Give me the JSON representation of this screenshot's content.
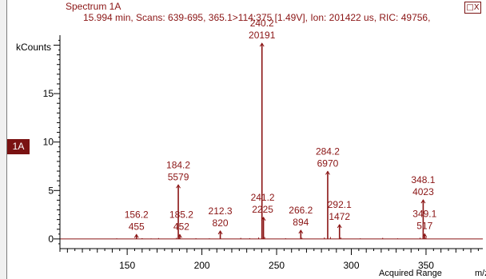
{
  "header": {
    "title": "Spectrum 1A",
    "info": "15.994 min, Scans: 639-695, 365.1>114:375 [1.49V], Ion: 201422 us, RIC: 49756,"
  },
  "tab_label": "1A",
  "footer": {
    "acquired_range": "Acquired Range"
  },
  "colors": {
    "peaks": "#8a1414",
    "axis": "#000000",
    "tab": "#7a1212"
  },
  "chart_data": {
    "type": "bar",
    "title": "Spectrum 1A",
    "ylabel": "kCounts",
    "xlabel": "m/z",
    "xlim": [
      105,
      388
    ],
    "ylim": [
      -1,
      20.7
    ],
    "x_ticks": [
      150,
      200,
      250,
      300,
      350
    ],
    "y_ticks": [
      0,
      5,
      10,
      15
    ],
    "peaks": [
      {
        "mz": 156.2,
        "intensity": 455,
        "mz_label": "156.2",
        "int_label": "455"
      },
      {
        "mz": 184.2,
        "intensity": 5579,
        "mz_label": "184.2",
        "int_label": "5579"
      },
      {
        "mz": 185.2,
        "intensity": 452,
        "mz_label": "185.2",
        "int_label": "452"
      },
      {
        "mz": 212.3,
        "intensity": 820,
        "mz_label": "212.3",
        "int_label": "820"
      },
      {
        "mz": 240.2,
        "intensity": 20191,
        "mz_label": "240.2",
        "int_label": "20191"
      },
      {
        "mz": 241.2,
        "intensity": 2225,
        "mz_label": "241.2",
        "int_label": "2225"
      },
      {
        "mz": 266.2,
        "intensity": 894,
        "mz_label": "266.2",
        "int_label": "894"
      },
      {
        "mz": 284.2,
        "intensity": 6970,
        "mz_label": "284.2",
        "int_label": "6970"
      },
      {
        "mz": 292.1,
        "intensity": 1472,
        "mz_label": "292.1",
        "int_label": "1472"
      },
      {
        "mz": 348.1,
        "intensity": 4023,
        "mz_label": "348.1",
        "int_label": "4023"
      },
      {
        "mz": 349.1,
        "intensity": 517,
        "mz_label": "349.1",
        "int_label": "517"
      }
    ],
    "minor_peaks": [
      {
        "mz": 143,
        "intensity": 60
      },
      {
        "mz": 160,
        "intensity": 80
      },
      {
        "mz": 166,
        "intensity": 50
      },
      {
        "mz": 171,
        "intensity": 90
      },
      {
        "mz": 183,
        "intensity": 120
      },
      {
        "mz": 196,
        "intensity": 70
      },
      {
        "mz": 205,
        "intensity": 60
      },
      {
        "mz": 226,
        "intensity": 110
      },
      {
        "mz": 232,
        "intensity": 80
      },
      {
        "mz": 238,
        "intensity": 150
      },
      {
        "mz": 242,
        "intensity": 200
      },
      {
        "mz": 256,
        "intensity": 70
      },
      {
        "mz": 267,
        "intensity": 120
      },
      {
        "mz": 282,
        "intensity": 150
      },
      {
        "mz": 286,
        "intensity": 200
      },
      {
        "mz": 293,
        "intensity": 140
      },
      {
        "mz": 306,
        "intensity": 60
      },
      {
        "mz": 321,
        "intensity": 110
      },
      {
        "mz": 331,
        "intensity": 60
      },
      {
        "mz": 346,
        "intensity": 120
      },
      {
        "mz": 350,
        "intensity": 160
      }
    ]
  }
}
